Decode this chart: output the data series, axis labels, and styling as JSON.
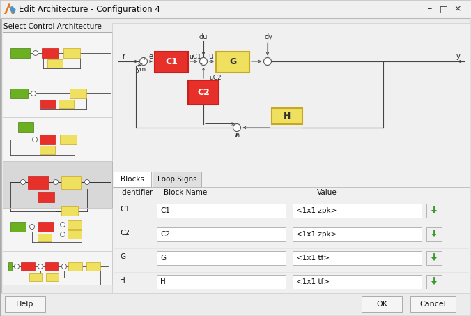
{
  "title": "Edit Architecture - Configuration 4",
  "bg_color": "#ececec",
  "white": "#ffffff",
  "block_red": "#e8302a",
  "block_yellow": "#f0e060",
  "block_green": "#6ab020",
  "block_red_border": "#c82020",
  "block_yellow_border": "#c8a820",
  "block_green_border": "#4a8010",
  "line_color": "#444444",
  "table_rows": [
    [
      "C1",
      "C1",
      "<1x1 zpk>"
    ],
    [
      "C2",
      "C2",
      "<1x1 zpk>"
    ],
    [
      "G",
      "G",
      "<1x1 tf>"
    ],
    [
      "H",
      "H",
      "<1x1 tf>"
    ]
  ],
  "tabs": [
    "Blocks",
    "Loop Signs"
  ],
  "buttons": [
    "Help",
    "OK",
    "Cancel"
  ],
  "fig_w": 6.76,
  "fig_h": 4.53,
  "dpi": 100
}
